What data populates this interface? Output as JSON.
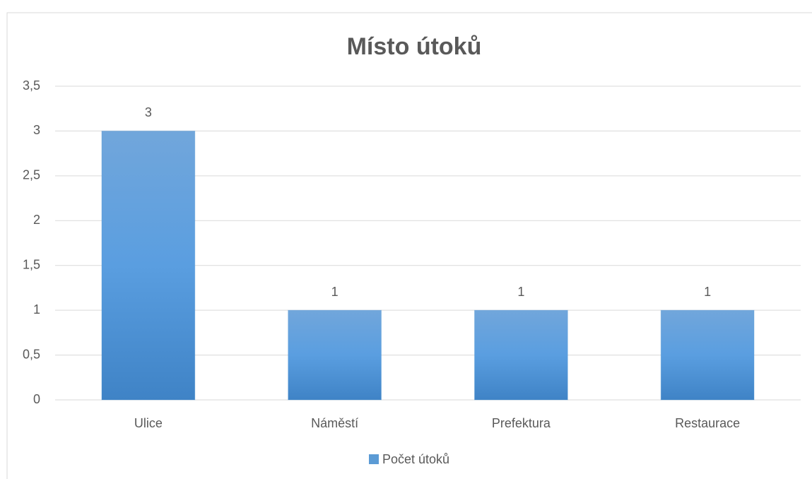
{
  "chart_data": {
    "type": "bar",
    "title": "Místo útoků",
    "categories": [
      "Ulice",
      "Náměstí",
      "Prefektura",
      "Restaurace"
    ],
    "series": [
      {
        "name": "Počet útoků",
        "color": "#5b9bd5",
        "values": [
          3,
          1,
          1,
          1
        ]
      }
    ],
    "ylim": [
      0,
      3.5
    ],
    "yticks": [
      0,
      {
        "value": 0.5,
        "label": "0,5"
      },
      1,
      {
        "value": 1.5,
        "label": "1,5"
      },
      2,
      {
        "value": 2.5,
        "label": "2,5"
      },
      3,
      {
        "value": 3.5,
        "label": "3,5"
      }
    ],
    "grid": true,
    "legend": "bottom"
  }
}
